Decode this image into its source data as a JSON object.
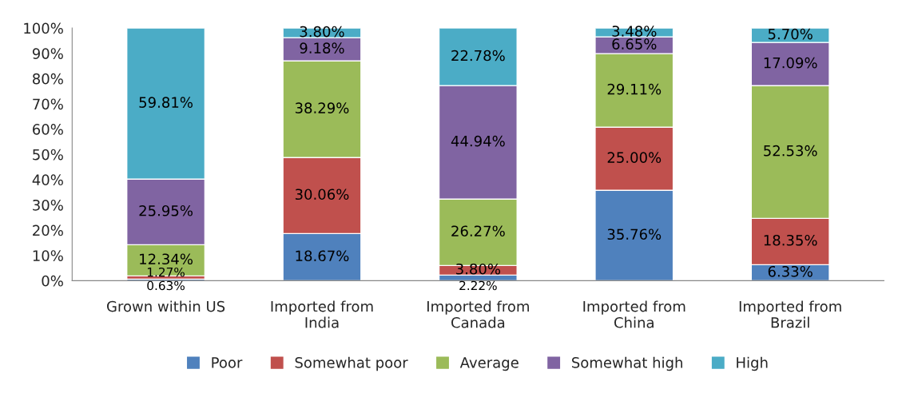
{
  "chart_data": {
    "type": "bar",
    "stacked": true,
    "categories": [
      "Grown within US",
      "Imported from India",
      "Imported from Canada",
      "Imported from China",
      "Imported from Brazil"
    ],
    "series": [
      {
        "name": "Poor",
        "color": "#4f81bd",
        "values": [
          0.63,
          18.67,
          2.22,
          35.76,
          6.33
        ],
        "value_labels": [
          "0.63%",
          "18.67%",
          "2.22%",
          "35.76%",
          "6.33%"
        ]
      },
      {
        "name": "Somewhat poor",
        "color": "#c0504d",
        "values": [
          1.27,
          30.06,
          3.8,
          25.0,
          18.35
        ],
        "value_labels": [
          "1.27%",
          "30.06%",
          "3.80%",
          "25.00%",
          "18.35%"
        ]
      },
      {
        "name": "Average",
        "color": "#9bbb59",
        "values": [
          12.34,
          38.29,
          26.27,
          29.11,
          52.53
        ],
        "value_labels": [
          "12.34%",
          "38.29%",
          "26.27%",
          "29.11%",
          "52.53%"
        ]
      },
      {
        "name": "Somewhat high",
        "color": "#8064a2",
        "values": [
          25.95,
          9.18,
          44.94,
          6.65,
          17.09
        ],
        "value_labels": [
          "25.95%",
          "9.18%",
          "44.94%",
          "6.65%",
          "17.09%"
        ]
      },
      {
        "name": "High",
        "color": "#4bacc6",
        "values": [
          59.81,
          3.8,
          22.78,
          3.48,
          5.7
        ],
        "value_labels": [
          "59.81%",
          "3.80%",
          "22.78%",
          "3.48%",
          "5.70%"
        ]
      }
    ],
    "ylim": [
      0,
      100
    ],
    "yticks": [
      {
        "value": 0,
        "label": "0%"
      },
      {
        "value": 10,
        "label": "10%"
      },
      {
        "value": 20,
        "label": "20%"
      },
      {
        "value": 30,
        "label": "30%"
      },
      {
        "value": 40,
        "label": "40%"
      },
      {
        "value": 50,
        "label": "50%"
      },
      {
        "value": 60,
        "label": "60%"
      },
      {
        "value": 70,
        "label": "70%"
      },
      {
        "value": 80,
        "label": "80%"
      },
      {
        "value": 90,
        "label": "90%"
      },
      {
        "value": 100,
        "label": "100%"
      }
    ],
    "grid": false,
    "legend": "bottom"
  }
}
